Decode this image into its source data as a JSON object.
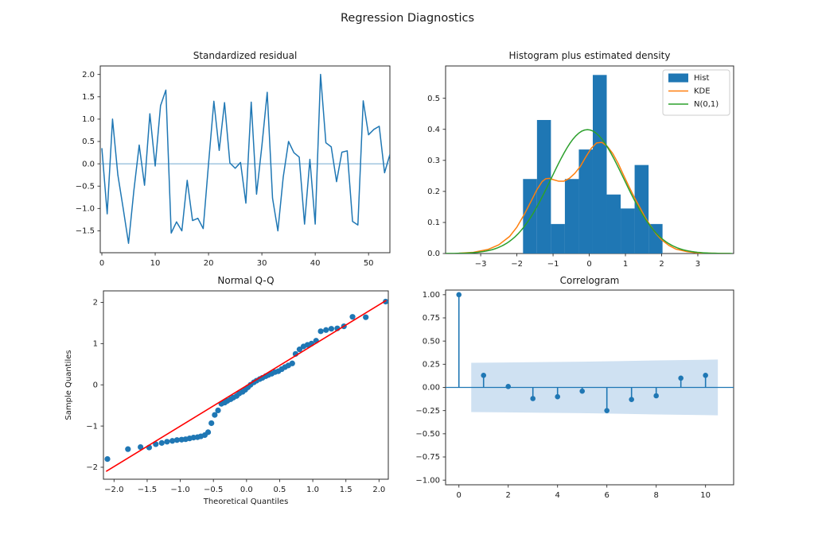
{
  "figure": {
    "title": "Regression Diagnostics",
    "background": "#ffffff"
  },
  "palette": {
    "blue": "#1f77b4",
    "light_blue": "#8fbbda",
    "orange": "#ff7f0e",
    "green": "#2ca02c",
    "red": "#ff0000",
    "band_fill": "#cfe1f2",
    "spine": "#2b2b2b",
    "legend_border": "#cccccc"
  },
  "chart_data": [
    {
      "id": "standardized-residual",
      "type": "line",
      "title": "Standardized residual",
      "x_start": 0,
      "values": [
        0.35,
        -1.12,
        1.0,
        -0.25,
        -1.0,
        -1.78,
        -0.6,
        0.42,
        -0.48,
        1.12,
        -0.05,
        1.3,
        1.65,
        -1.55,
        -1.3,
        -1.5,
        -0.37,
        -1.27,
        -1.22,
        -1.45,
        0.0,
        1.4,
        0.3,
        1.37,
        0.02,
        -0.1,
        0.03,
        -0.88,
        1.38,
        -0.68,
        0.4,
        1.6,
        -0.77,
        -1.5,
        -0.3,
        0.5,
        0.25,
        0.15,
        -1.35,
        0.1,
        -1.35,
        2.0,
        0.47,
        0.38,
        -0.4,
        0.26,
        0.29,
        -1.29,
        -1.37,
        1.41,
        0.65,
        0.77,
        0.84,
        -0.2,
        0.21
      ],
      "zero_line": true,
      "xlim": [
        -0.3,
        54.0
      ],
      "ylim": [
        -1.99,
        2.19
      ],
      "xticks": {
        "values": [
          0,
          10,
          20,
          30,
          40,
          50
        ],
        "labels": [
          "0",
          "10",
          "20",
          "30",
          "40",
          "50"
        ]
      },
      "yticks": {
        "values": [
          2.0,
          1.5,
          1.0,
          0.5,
          0.0,
          -0.5,
          -1.0,
          -1.5
        ],
        "labels": [
          "2.0",
          "1.5",
          "1.0",
          "0.5",
          "0.0",
          "−0.5",
          "−1.0",
          "−1.5"
        ]
      }
    },
    {
      "id": "histogram-density",
      "type": "histogram",
      "title": "Histogram plus estimated density",
      "bin_start": -1.83,
      "bin_width": 0.3855,
      "bar_heights": [
        0.24,
        0.43,
        0.095,
        0.24,
        0.335,
        0.575,
        0.19,
        0.145,
        0.285,
        0.095
      ],
      "kde_curve": [
        [
          -3.6,
          0.001
        ],
        [
          -3.2,
          0.004
        ],
        [
          -2.8,
          0.013
        ],
        [
          -2.5,
          0.028
        ],
        [
          -2.2,
          0.055
        ],
        [
          -2.0,
          0.085
        ],
        [
          -1.8,
          0.125
        ],
        [
          -1.6,
          0.17
        ],
        [
          -1.45,
          0.205
        ],
        [
          -1.3,
          0.232
        ],
        [
          -1.2,
          0.241
        ],
        [
          -1.1,
          0.242
        ],
        [
          -1.0,
          0.238
        ],
        [
          -0.85,
          0.233
        ],
        [
          -0.7,
          0.233
        ],
        [
          -0.55,
          0.242
        ],
        [
          -0.4,
          0.258
        ],
        [
          -0.25,
          0.28
        ],
        [
          -0.1,
          0.31
        ],
        [
          0.05,
          0.338
        ],
        [
          0.2,
          0.356
        ],
        [
          0.35,
          0.358
        ],
        [
          0.5,
          0.345
        ],
        [
          0.65,
          0.322
        ],
        [
          0.8,
          0.29
        ],
        [
          0.95,
          0.252
        ],
        [
          1.1,
          0.215
        ],
        [
          1.25,
          0.18
        ],
        [
          1.4,
          0.148
        ],
        [
          1.55,
          0.115
        ],
        [
          1.7,
          0.088
        ],
        [
          1.85,
          0.063
        ],
        [
          2.0,
          0.044
        ],
        [
          2.2,
          0.026
        ],
        [
          2.4,
          0.014
        ],
        [
          2.7,
          0.006
        ],
        [
          3.0,
          0.002
        ],
        [
          3.4,
          0.001
        ],
        [
          3.9,
          0.0
        ]
      ],
      "normal_curve": {
        "mean": -0.05,
        "sd": 1.0
      },
      "legend": [
        {
          "label": "Hist",
          "swatch": "patch",
          "color": "#1f77b4"
        },
        {
          "label": "KDE",
          "swatch": "line",
          "color": "#ff7f0e"
        },
        {
          "label": "N(0,1)",
          "swatch": "line",
          "color": "#2ca02c"
        }
      ],
      "xlim": [
        -3.97,
        3.99
      ],
      "ylim": [
        0,
        0.604
      ],
      "xticks": {
        "values": [
          -3,
          -2,
          -1,
          0,
          1,
          2,
          3
        ],
        "labels": [
          "−3",
          "−2",
          "−1",
          "0",
          "1",
          "2",
          "3"
        ]
      },
      "yticks": {
        "values": [
          0.0,
          0.1,
          0.2,
          0.3,
          0.4,
          0.5
        ],
        "labels": [
          "0.0",
          "0.1",
          "0.2",
          "0.3",
          "0.4",
          "0.5"
        ]
      }
    },
    {
      "id": "normal-qq",
      "type": "scatter",
      "title": "Normal Q-Q",
      "xlabel": "Theoretical Quantiles",
      "ylabel": "Sample Quantiles",
      "points": [
        [
          -2.1,
          -1.8
        ],
        [
          -1.79,
          -1.56
        ],
        [
          -1.6,
          -1.51
        ],
        [
          -1.47,
          -1.52
        ],
        [
          -1.37,
          -1.44
        ],
        [
          -1.28,
          -1.41
        ],
        [
          -1.2,
          -1.38
        ],
        [
          -1.12,
          -1.36
        ],
        [
          -1.05,
          -1.34
        ],
        [
          -0.98,
          -1.33
        ],
        [
          -0.92,
          -1.32
        ],
        [
          -0.86,
          -1.3
        ],
        [
          -0.8,
          -1.28
        ],
        [
          -0.74,
          -1.27
        ],
        [
          -0.69,
          -1.25
        ],
        [
          -0.63,
          -1.22
        ],
        [
          -0.58,
          -1.15
        ],
        [
          -0.53,
          -0.93
        ],
        [
          -0.48,
          -0.73
        ],
        [
          -0.43,
          -0.62
        ],
        [
          -0.38,
          -0.46
        ],
        [
          -0.33,
          -0.43
        ],
        [
          -0.29,
          -0.39
        ],
        [
          -0.24,
          -0.35
        ],
        [
          -0.2,
          -0.31
        ],
        [
          -0.15,
          -0.27
        ],
        [
          -0.11,
          -0.21
        ],
        [
          -0.06,
          -0.17
        ],
        [
          -0.02,
          -0.12
        ],
        [
          0.02,
          -0.06
        ],
        [
          0.06,
          0.0
        ],
        [
          0.11,
          0.06
        ],
        [
          0.15,
          0.1
        ],
        [
          0.2,
          0.14
        ],
        [
          0.24,
          0.17
        ],
        [
          0.29,
          0.21
        ],
        [
          0.33,
          0.24
        ],
        [
          0.38,
          0.27
        ],
        [
          0.43,
          0.31
        ],
        [
          0.48,
          0.33
        ],
        [
          0.53,
          0.38
        ],
        [
          0.58,
          0.43
        ],
        [
          0.63,
          0.47
        ],
        [
          0.69,
          0.52
        ],
        [
          0.74,
          0.75
        ],
        [
          0.8,
          0.86
        ],
        [
          0.86,
          0.93
        ],
        [
          0.92,
          0.97
        ],
        [
          0.98,
          1.0
        ],
        [
          1.05,
          1.07
        ],
        [
          1.12,
          1.3
        ],
        [
          1.2,
          1.33
        ],
        [
          1.28,
          1.36
        ],
        [
          1.37,
          1.37
        ],
        [
          1.47,
          1.42
        ],
        [
          1.6,
          1.65
        ],
        [
          1.8,
          1.64
        ],
        [
          2.1,
          2.02
        ]
      ],
      "fit_line": {
        "x1": -2.12,
        "y1": -2.1,
        "x2": 2.11,
        "y2": 2.05
      },
      "xlim": [
        -2.16,
        2.14
      ],
      "ylim": [
        -2.29,
        2.28
      ],
      "xticks": {
        "values": [
          -2.0,
          -1.5,
          -1.0,
          -0.5,
          0.0,
          0.5,
          1.0,
          1.5,
          2.0
        ],
        "labels": [
          "−2.0",
          "−1.5",
          "−1.0",
          "−0.5",
          "0.0",
          "0.5",
          "1.0",
          "1.5",
          "2.0"
        ]
      },
      "yticks": {
        "values": [
          -2,
          -1,
          0,
          1,
          2
        ],
        "labels": [
          "−2",
          "−1",
          "0",
          "1",
          "2"
        ]
      }
    },
    {
      "id": "correlogram",
      "type": "stem",
      "title": "Correlogram",
      "lags": [
        0,
        1,
        2,
        3,
        4,
        5,
        6,
        7,
        8,
        9,
        10
      ],
      "acf": [
        1.0,
        0.13,
        0.01,
        -0.12,
        -0.1,
        -0.04,
        -0.25,
        -0.13,
        -0.09,
        0.1,
        0.13
      ],
      "conf_band": {
        "x": [
          0.5,
          3.0,
          5.0,
          6.5,
          8.0,
          10.5
        ],
        "upper": [
          0.266,
          0.272,
          0.277,
          0.284,
          0.291,
          0.301
        ]
      },
      "zero_line": true,
      "xlim": [
        -0.54,
        11.14
      ],
      "ylim": [
        -1.05,
        1.05
      ],
      "xticks": {
        "values": [
          0,
          2,
          4,
          6,
          8,
          10
        ],
        "labels": [
          "0",
          "2",
          "4",
          "6",
          "8",
          "10"
        ]
      },
      "yticks": {
        "values": [
          1.0,
          0.75,
          0.5,
          0.25,
          0.0,
          -0.25,
          -0.5,
          -0.75,
          -1.0
        ],
        "labels": [
          "1.00",
          "0.75",
          "0.50",
          "0.25",
          "0.00",
          "−0.25",
          "−0.50",
          "−0.75",
          "−1.00"
        ]
      }
    }
  ]
}
